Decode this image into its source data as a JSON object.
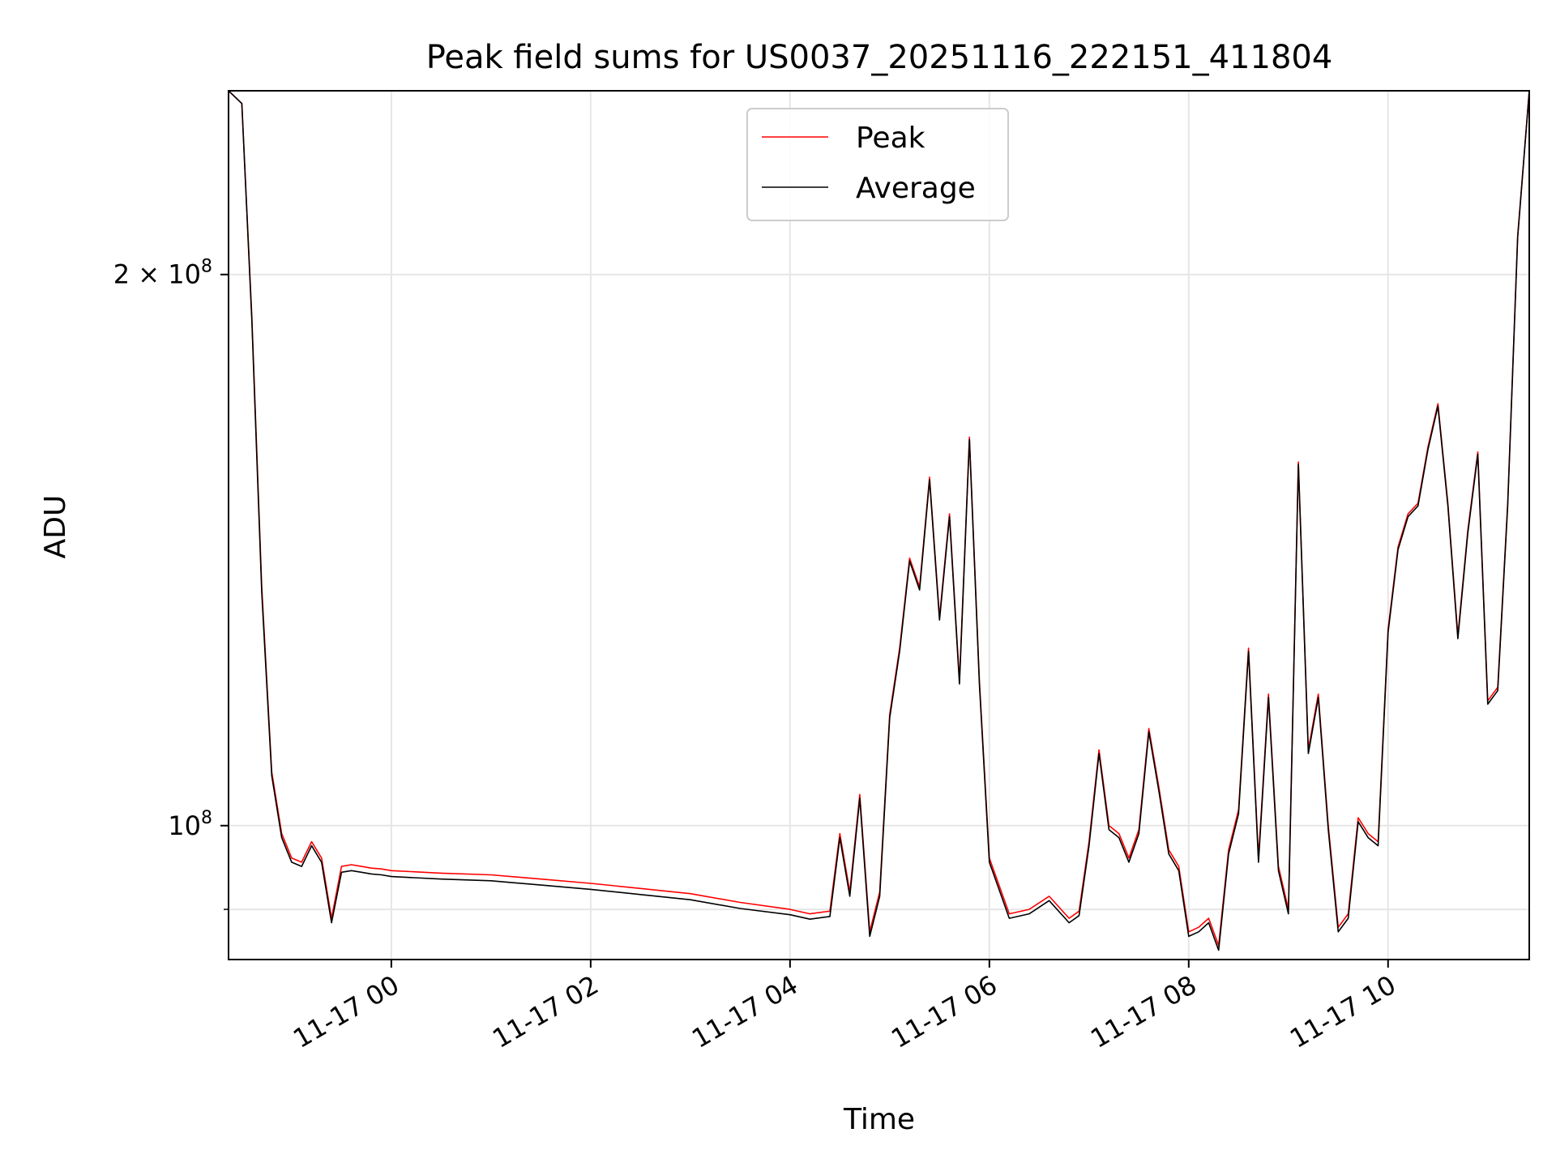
{
  "chart_data": {
    "type": "line",
    "title": "Peak field sums for US0037_20251116_222151_411804",
    "xlabel": "Time",
    "ylabel": "ADU",
    "x_unit": "datetime",
    "xlim": [
      "2025-11-16 22:22",
      "2025-11-17 11:25"
    ],
    "ylim": [
      84500000,
      252000000
    ],
    "yscale": "log",
    "grid": true,
    "legend": "upper-center",
    "x_ticks": [
      "11-17 00",
      "11-17 02",
      "11-17 04",
      "11-17 06",
      "11-17 08",
      "11-17 10"
    ],
    "y_major_ticks": [
      {
        "value": 100000000,
        "base": "10",
        "exp": "8",
        "coef": ""
      },
      {
        "value": 200000000,
        "base": "10",
        "exp": "8",
        "coef": "2"
      }
    ],
    "y_minor_ticks": [
      90000000
    ],
    "series": [
      {
        "name": "Peak",
        "color": "#ff0000",
        "x": [
          "2025-11-16 22:22",
          "2025-11-16 22:30",
          "2025-11-16 22:36",
          "2025-11-16 22:42",
          "2025-11-16 22:48",
          "2025-11-16 22:54",
          "2025-11-16 23:00",
          "2025-11-16 23:06",
          "2025-11-16 23:12",
          "2025-11-16 23:18",
          "2025-11-16 23:24",
          "2025-11-16 23:30",
          "2025-11-16 23:36",
          "2025-11-16 23:42",
          "2025-11-16 23:48",
          "2025-11-16 23:54",
          "2025-11-17 00:00",
          "2025-11-17 00:30",
          "2025-11-17 01:00",
          "2025-11-17 01:30",
          "2025-11-17 02:00",
          "2025-11-17 02:30",
          "2025-11-17 03:00",
          "2025-11-17 03:30",
          "2025-11-17 04:00",
          "2025-11-17 04:12",
          "2025-11-17 04:24",
          "2025-11-17 04:30",
          "2025-11-17 04:36",
          "2025-11-17 04:42",
          "2025-11-17 04:48",
          "2025-11-17 04:54",
          "2025-11-17 05:00",
          "2025-11-17 05:06",
          "2025-11-17 05:12",
          "2025-11-17 05:18",
          "2025-11-17 05:24",
          "2025-11-17 05:30",
          "2025-11-17 05:36",
          "2025-11-17 05:42",
          "2025-11-17 05:48",
          "2025-11-17 05:54",
          "2025-11-17 06:00",
          "2025-11-17 06:12",
          "2025-11-17 06:24",
          "2025-11-17 06:36",
          "2025-11-17 06:48",
          "2025-11-17 06:54",
          "2025-11-17 07:00",
          "2025-11-17 07:06",
          "2025-11-17 07:12",
          "2025-11-17 07:18",
          "2025-11-17 07:24",
          "2025-11-17 07:30",
          "2025-11-17 07:36",
          "2025-11-17 07:42",
          "2025-11-17 07:48",
          "2025-11-17 07:54",
          "2025-11-17 08:00",
          "2025-11-17 08:06",
          "2025-11-17 08:12",
          "2025-11-17 08:18",
          "2025-11-17 08:24",
          "2025-11-17 08:30",
          "2025-11-17 08:36",
          "2025-11-17 08:42",
          "2025-11-17 08:48",
          "2025-11-17 08:54",
          "2025-11-17 09:00",
          "2025-11-17 09:06",
          "2025-11-17 09:12",
          "2025-11-17 09:18",
          "2025-11-17 09:24",
          "2025-11-17 09:30",
          "2025-11-17 09:36",
          "2025-11-17 09:42",
          "2025-11-17 09:48",
          "2025-11-17 09:54",
          "2025-11-17 10:00",
          "2025-11-17 10:06",
          "2025-11-17 10:12",
          "2025-11-17 10:18",
          "2025-11-17 10:24",
          "2025-11-17 10:30",
          "2025-11-17 10:36",
          "2025-11-17 10:42",
          "2025-11-17 10:48",
          "2025-11-17 10:54",
          "2025-11-17 11:00",
          "2025-11-17 11:06",
          "2025-11-17 11:12",
          "2025-11-17 11:18",
          "2025-11-17 11:25"
        ],
        "values": [
          252000000,
          248000000,
          190000000,
          135000000,
          107000000,
          99000000,
          96000000,
          95500000,
          98000000,
          96000000,
          89000000,
          95000000,
          95200000,
          95000000,
          94800000,
          94700000,
          94500000,
          94200000,
          94000000,
          93500000,
          93000000,
          92400000,
          91800000,
          90800000,
          90000000,
          89500000,
          89800000,
          99000000,
          92000000,
          104000000,
          87500000,
          92000000,
          115000000,
          125000000,
          140000000,
          135000000,
          155000000,
          130000000,
          148000000,
          120000000,
          163000000,
          120000000,
          96000000,
          89500000,
          90000000,
          91500000,
          89000000,
          89800000,
          98000000,
          110000000,
          100000000,
          99000000,
          96000000,
          99500000,
          113000000,
          105000000,
          97000000,
          95000000,
          87500000,
          88000000,
          89000000,
          86000000,
          97000000,
          102000000,
          125000000,
          96000000,
          118000000,
          95000000,
          90000000,
          158000000,
          110000000,
          118000000,
          100000000,
          88000000,
          89500000,
          101000000,
          99000000,
          98000000,
          128000000,
          142000000,
          148000000,
          150000000,
          161000000,
          170000000,
          150000000,
          127000000,
          145000000,
          160000000,
          117000000,
          119000000,
          150000000,
          210000000,
          252000000
        ]
      },
      {
        "name": "Average",
        "color": "#000000",
        "x": [
          "2025-11-16 22:22",
          "2025-11-16 22:30",
          "2025-11-16 22:36",
          "2025-11-16 22:42",
          "2025-11-16 22:48",
          "2025-11-16 22:54",
          "2025-11-16 23:00",
          "2025-11-16 23:06",
          "2025-11-16 23:12",
          "2025-11-16 23:18",
          "2025-11-16 23:24",
          "2025-11-16 23:30",
          "2025-11-16 23:36",
          "2025-11-16 23:42",
          "2025-11-16 23:48",
          "2025-11-16 23:54",
          "2025-11-17 00:00",
          "2025-11-17 00:30",
          "2025-11-17 01:00",
          "2025-11-17 01:30",
          "2025-11-17 02:00",
          "2025-11-17 02:30",
          "2025-11-17 03:00",
          "2025-11-17 03:30",
          "2025-11-17 04:00",
          "2025-11-17 04:12",
          "2025-11-17 04:24",
          "2025-11-17 04:30",
          "2025-11-17 04:36",
          "2025-11-17 04:42",
          "2025-11-17 04:48",
          "2025-11-17 04:54",
          "2025-11-17 05:00",
          "2025-11-17 05:06",
          "2025-11-17 05:12",
          "2025-11-17 05:18",
          "2025-11-17 05:24",
          "2025-11-17 05:30",
          "2025-11-17 05:36",
          "2025-11-17 05:42",
          "2025-11-17 05:48",
          "2025-11-17 05:54",
          "2025-11-17 06:00",
          "2025-11-17 06:12",
          "2025-11-17 06:24",
          "2025-11-17 06:36",
          "2025-11-17 06:48",
          "2025-11-17 06:54",
          "2025-11-17 07:00",
          "2025-11-17 07:06",
          "2025-11-17 07:12",
          "2025-11-17 07:18",
          "2025-11-17 07:24",
          "2025-11-17 07:30",
          "2025-11-17 07:36",
          "2025-11-17 07:42",
          "2025-11-17 07:48",
          "2025-11-17 07:54",
          "2025-11-17 08:00",
          "2025-11-17 08:06",
          "2025-11-17 08:12",
          "2025-11-17 08:18",
          "2025-11-17 08:24",
          "2025-11-17 08:30",
          "2025-11-17 08:36",
          "2025-11-17 08:42",
          "2025-11-17 08:48",
          "2025-11-17 08:54",
          "2025-11-17 09:00",
          "2025-11-17 09:06",
          "2025-11-17 09:12",
          "2025-11-17 09:18",
          "2025-11-17 09:24",
          "2025-11-17 09:30",
          "2025-11-17 09:36",
          "2025-11-17 09:42",
          "2025-11-17 09:48",
          "2025-11-17 09:54",
          "2025-11-17 10:00",
          "2025-11-17 10:06",
          "2025-11-17 10:12",
          "2025-11-17 10:18",
          "2025-11-17 10:24",
          "2025-11-17 10:30",
          "2025-11-17 10:36",
          "2025-11-17 10:42",
          "2025-11-17 10:48",
          "2025-11-17 10:54",
          "2025-11-17 11:00",
          "2025-11-17 11:06",
          "2025-11-17 11:12",
          "2025-11-17 11:18",
          "2025-11-17 11:25"
        ],
        "values": [
          252000000,
          248000000,
          189000000,
          134000000,
          106500000,
          98500000,
          95500000,
          95000000,
          97500000,
          95500000,
          88500000,
          94300000,
          94500000,
          94300000,
          94100000,
          94000000,
          93800000,
          93500000,
          93300000,
          92800000,
          92300000,
          91700000,
          91100000,
          90100000,
          89400000,
          88900000,
          89200000,
          98500000,
          91500000,
          103500000,
          87000000,
          91500000,
          114500000,
          124500000,
          139500000,
          134500000,
          154500000,
          129500000,
          147500000,
          119500000,
          162500000,
          119500000,
          95500000,
          89000000,
          89500000,
          91000000,
          88500000,
          89300000,
          97500000,
          109500000,
          99500000,
          98500000,
          95500000,
          99000000,
          112500000,
          104500000,
          96500000,
          94500000,
          87000000,
          87500000,
          88500000,
          85500000,
          96500000,
          101500000,
          124500000,
          95500000,
          117500000,
          94500000,
          89500000,
          157500000,
          109500000,
          117500000,
          99500000,
          87500000,
          89000000,
          100500000,
          98500000,
          97500000,
          127500000,
          141500000,
          147500000,
          149500000,
          160500000,
          169500000,
          149500000,
          126500000,
          144500000,
          159500000,
          116500000,
          118500000,
          149500000,
          209500000,
          252000000
        ]
      }
    ]
  }
}
